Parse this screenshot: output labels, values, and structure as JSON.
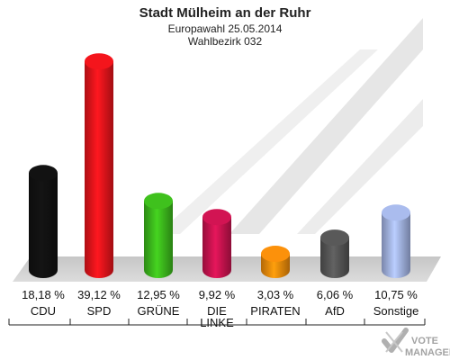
{
  "chart_data": {
    "type": "bar",
    "title": "Stadt Mülheim an der Ruhr",
    "subtitle_1": "Europawahl 25.05.2014",
    "subtitle_2": "Wahlbezirk 032",
    "categories": [
      {
        "label": [
          "CDU"
        ],
        "value": 18.18,
        "value_label": "18,18 %",
        "color": "#111111"
      },
      {
        "label": [
          "SPD"
        ],
        "value": 39.12,
        "value_label": "39,12 %",
        "color": "#e8141b"
      },
      {
        "label": [
          "GRÜNE"
        ],
        "value": 12.95,
        "value_label": "12,95 %",
        "color": "#3cb81c"
      },
      {
        "label": [
          "DIE",
          "LINKE"
        ],
        "value": 9.92,
        "value_label": "9,92 %",
        "color": "#c8134f"
      },
      {
        "label": [
          "PIRATEN"
        ],
        "value": 3.03,
        "value_label": "3,03 %",
        "color": "#f08a0a"
      },
      {
        "label": [
          "AfD"
        ],
        "value": 6.06,
        "value_label": "6,06 %",
        "color": "#555555"
      },
      {
        "label": [
          "Sonstige"
        ],
        "value": 10.75,
        "value_label": "10,75 %",
        "color": "#a2b3e3"
      }
    ],
    "ylim": [
      0,
      40
    ]
  },
  "logo": {
    "line1": "VOTE",
    "line2": "MANAGER"
  }
}
